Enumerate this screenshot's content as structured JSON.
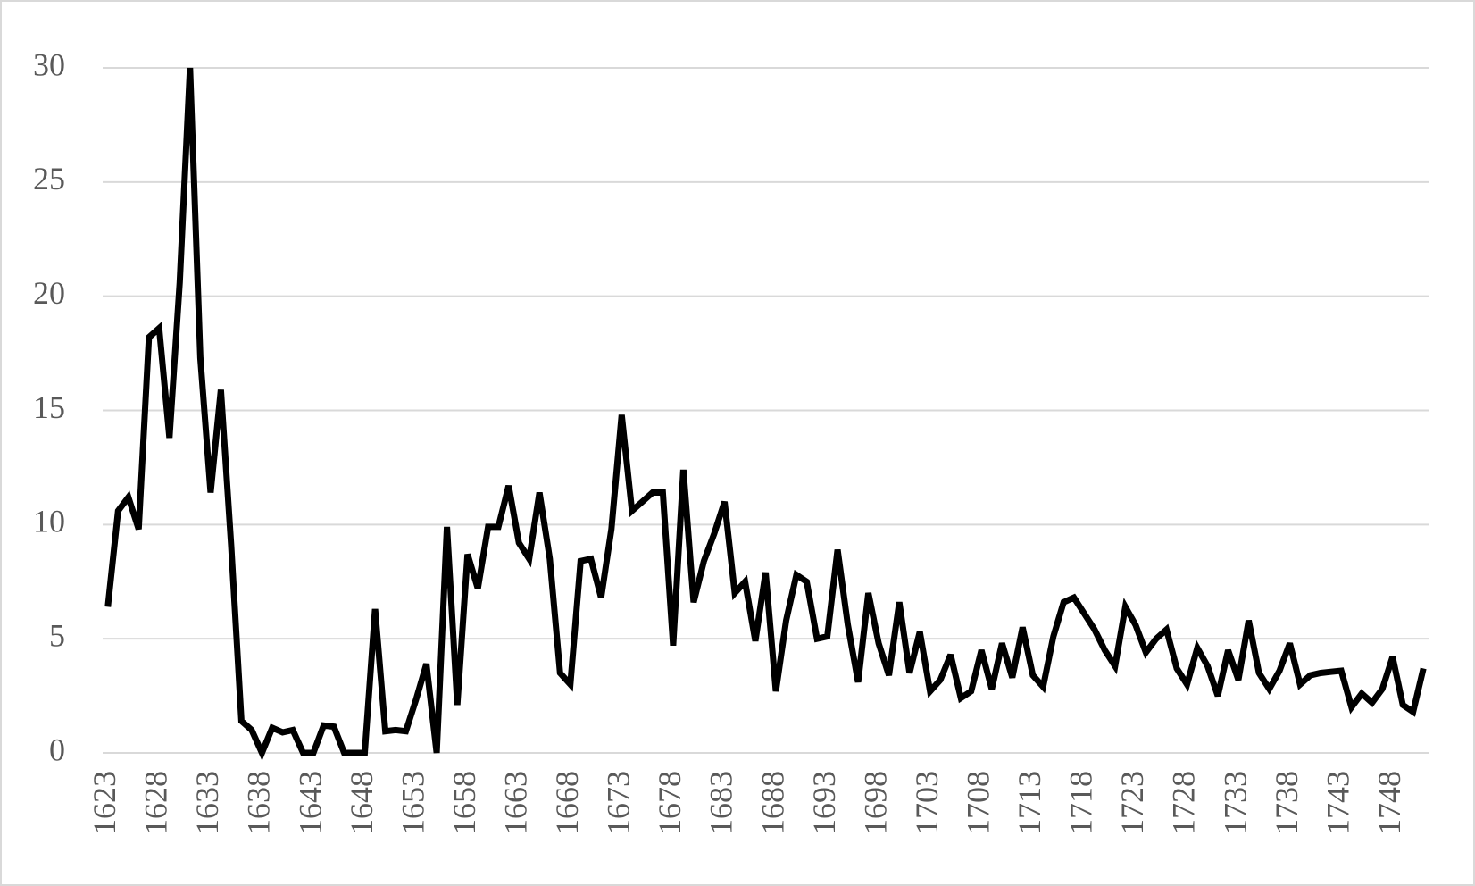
{
  "chart_data": {
    "type": "line",
    "categories": [
      "1623",
      null,
      null,
      null,
      null,
      "1628",
      null,
      null,
      null,
      null,
      "1633",
      null,
      null,
      null,
      null,
      "1638",
      null,
      null,
      null,
      null,
      "1643",
      null,
      null,
      null,
      null,
      "1648",
      null,
      null,
      null,
      null,
      "1653",
      null,
      null,
      null,
      null,
      "1658",
      null,
      null,
      null,
      null,
      "1663",
      null,
      null,
      null,
      null,
      "1668",
      null,
      null,
      null,
      null,
      "1673",
      null,
      null,
      null,
      null,
      "1678",
      null,
      null,
      null,
      null,
      "1683",
      null,
      null,
      null,
      null,
      "1688",
      null,
      null,
      null,
      null,
      "1693",
      null,
      null,
      null,
      null,
      "1698",
      null,
      null,
      null,
      null,
      "1703",
      null,
      null,
      null,
      null,
      "1708",
      null,
      null,
      null,
      null,
      "1713",
      null,
      null,
      null,
      null,
      "1718",
      null,
      null,
      null,
      null,
      "1723",
      null,
      null,
      null,
      null,
      "1728",
      null,
      null,
      null,
      null,
      "1733",
      null,
      null,
      null,
      null,
      "1738",
      null,
      null,
      null,
      null,
      "1743",
      null,
      null,
      null,
      null,
      "1748",
      null,
      null,
      null
    ],
    "values": [
      6.4,
      10.6,
      11.2,
      9.8,
      18.2,
      18.6,
      13.8,
      20.6,
      30,
      17.3,
      11.4,
      15.9,
      9.1,
      1.4,
      1.0,
      0,
      1.1,
      0.9,
      1.0,
      0,
      0,
      1.2,
      1.15,
      0,
      0,
      0,
      6.3,
      0.95,
      1.0,
      0.95,
      2.35,
      3.9,
      0,
      9.9,
      2.1,
      8.7,
      7.2,
      9.9,
      9.9,
      11.7,
      9.2,
      8.5,
      11.4,
      8.5,
      3.5,
      3.0,
      8.4,
      8.5,
      6.8,
      9.8,
      14.8,
      10.6,
      11.0,
      11.4,
      11.4,
      4.7,
      12.4,
      6.6,
      8.4,
      9.6,
      11.0,
      7.0,
      7.5,
      4.9,
      7.9,
      2.7,
      5.8,
      7.8,
      7.5,
      5.0,
      5.1,
      8.9,
      5.6,
      3.1,
      7.0,
      4.8,
      3.4,
      6.6,
      3.5,
      5.3,
      2.7,
      3.2,
      4.3,
      2.4,
      2.7,
      4.5,
      2.8,
      4.8,
      3.3,
      5.5,
      3.4,
      2.9,
      5.1,
      6.6,
      6.8,
      6.1,
      5.4,
      4.5,
      3.8,
      6.4,
      5.6,
      4.4,
      5.0,
      5.4,
      3.7,
      3.0,
      4.6,
      3.8,
      2.5,
      4.5,
      3.2,
      5.8,
      3.5,
      2.8,
      3.6,
      4.8,
      3.0,
      3.4,
      3.5,
      3.55,
      3.6,
      2.0,
      2.6,
      2.2,
      2.8,
      4.2,
      2.1,
      1.8,
      3.7
    ],
    "color": "#000000",
    "ylim": [
      0,
      30
    ],
    "yticks": [
      0,
      5,
      10,
      15,
      20,
      25,
      30
    ],
    "grid": true
  }
}
